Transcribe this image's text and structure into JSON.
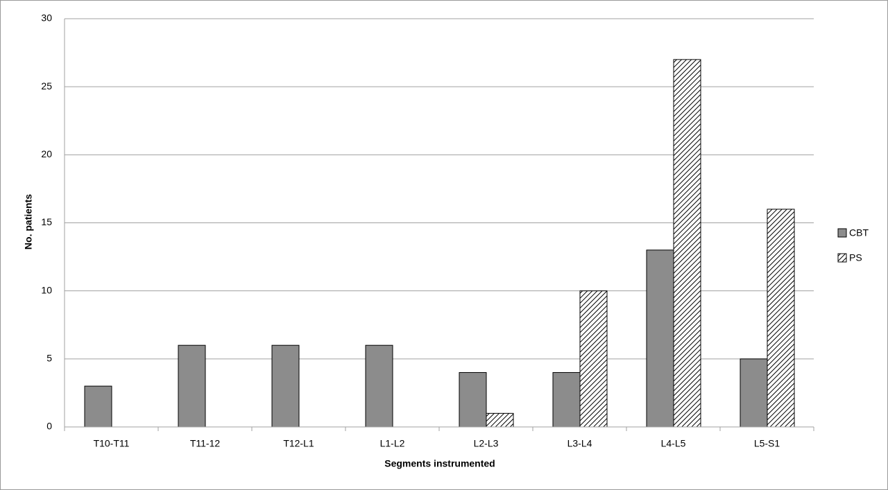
{
  "chart_data": {
    "type": "bar",
    "x_label": "Segments instrumented",
    "y_label": "No. patients",
    "categories": [
      "T10-T11",
      "T11-12",
      "T12-L1",
      "L1-L2",
      "L2-L3",
      "L3-L4",
      "L4-L5",
      "L5-S1"
    ],
    "series": [
      {
        "name": "CBT",
        "color": "#8c8c8c",
        "hatch": false,
        "values": [
          3,
          6,
          6,
          6,
          4,
          4,
          13,
          5
        ]
      },
      {
        "name": "PS",
        "color": "#ffffff",
        "hatch": true,
        "values": [
          0,
          0,
          0,
          0,
          1,
          10,
          27,
          16
        ]
      }
    ],
    "ylim": [
      0,
      30
    ],
    "yticks": [
      0,
      5,
      10,
      15,
      20,
      25,
      30
    ],
    "grid": true,
    "legend": "right"
  }
}
